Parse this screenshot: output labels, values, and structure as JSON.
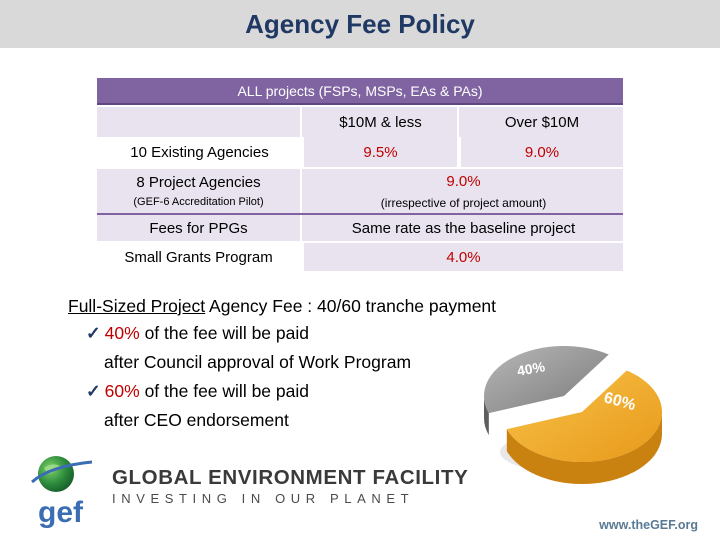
{
  "title": "Agency Fee Policy",
  "table": {
    "header": "ALL projects (FSPs, MSPs, EAs & PAs)",
    "col_small": "$10M & less",
    "col_large": "Over $10M",
    "rows": {
      "existing": {
        "label": "10 Existing Agencies",
        "small": "9.5%",
        "large": "9.0%"
      },
      "project": {
        "label": "8 Project Agencies",
        "sublabel": "(GEF-6 Accreditation Pilot)",
        "value": "9.0%",
        "note": "(irrespective of project amount)"
      },
      "ppg": {
        "label": "Fees for PPGs",
        "value": "Same rate as the baseline project"
      },
      "sgp": {
        "label": "Small Grants Program",
        "value": "4.0%"
      }
    }
  },
  "full_sized": {
    "underlined": "Full-Sized Project",
    "rest": " Agency Fee : 40/60 tranche payment"
  },
  "tranches": [
    {
      "check": "✓",
      "pct": "40%",
      "text": " of the fee will be paid",
      "detail": "after Council approval of Work Program"
    },
    {
      "check": "✓",
      "pct": "60%",
      "text": " of the fee will be paid",
      "detail": "after CEO endorsement"
    }
  ],
  "pie": {
    "small_label": "40%",
    "large_label": "60%",
    "small_value": 40,
    "large_value": 60,
    "small_color": "#8c8c8c",
    "large_color": "#f0a81c"
  },
  "footer": {
    "logo_text": "gef",
    "org_name": "GLOBAL ENVIRONMENT FACILITY",
    "tagline": "INVESTING IN OUR PLANET",
    "url": "www.theGEF.org"
  },
  "colors": {
    "title": "#1f3864",
    "header_bg": "#8064a2",
    "row_bg": "#e8e3ef",
    "accent_red": "#c00000"
  }
}
